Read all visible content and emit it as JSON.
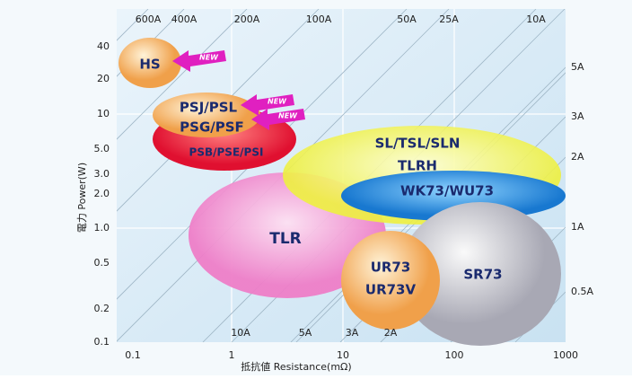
{
  "axes": {
    "x_label": "抵抗値 Resistance(mΩ)",
    "y_label": "電力 Power(W)",
    "x_ticks": [
      "0.1",
      "1",
      "10",
      "100",
      "1000"
    ],
    "y_ticks": [
      "40",
      "20",
      "10",
      "5.0",
      "3.0",
      "2.0",
      "1.0",
      "0.5",
      "0.2",
      "0.1"
    ]
  },
  "current_lines": {
    "top": [
      "600A",
      "400A",
      "200A",
      "100A",
      "50A",
      "25A",
      "10A"
    ],
    "right": [
      "5A",
      "3A",
      "2A",
      "1A",
      "0.5A"
    ],
    "bottom": [
      "10A",
      "5A",
      "3A",
      "2A"
    ]
  },
  "regions": {
    "hs": "HS",
    "psj": "PSJ/PSL",
    "psg": "PSG/PSF",
    "psb": "PSB/PSE/PSI",
    "sl": "SL/TSL/SLN",
    "tlrh": "TLRH",
    "wk": "WK73/WU73",
    "tlr": "TLR",
    "ur1": "UR73",
    "ur2": "UR73V",
    "sr": "SR73"
  },
  "badges": [
    "NEW",
    "NEW",
    "NEW"
  ]
}
